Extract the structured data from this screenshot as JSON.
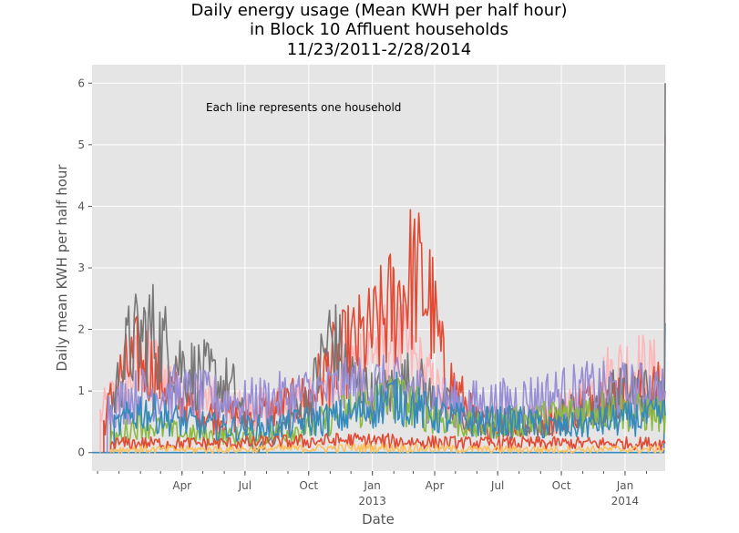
{
  "chart_data": {
    "type": "line",
    "title": [
      "Daily energy usage (Mean KWH per half hour)",
      "in Block 10 Affluent households",
      "11/23/2011-2/28/2014"
    ],
    "xlabel": "Date",
    "ylabel": "Daily mean KWH per half hour",
    "annotation": "Each line represents one household",
    "x_range": [
      "2011-11-23",
      "2014-02-28"
    ],
    "ylim": [
      -0.3,
      6.3
    ],
    "y_ticks": [
      0,
      1,
      2,
      3,
      4,
      5,
      6
    ],
    "x_ticks": [
      {
        "date": "2012-04-01",
        "label": "Apr",
        "sub": ""
      },
      {
        "date": "2012-07-01",
        "label": "Jul",
        "sub": ""
      },
      {
        "date": "2012-10-01",
        "label": "Oct",
        "sub": ""
      },
      {
        "date": "2013-01-01",
        "label": "Jan",
        "sub": "2013"
      },
      {
        "date": "2013-04-01",
        "label": "Apr",
        "sub": ""
      },
      {
        "date": "2013-07-01",
        "label": "Jul",
        "sub": ""
      },
      {
        "date": "2013-10-01",
        "label": "Oct",
        "sub": ""
      },
      {
        "date": "2014-01-01",
        "label": "Jan",
        "sub": "2014"
      }
    ],
    "grid": true,
    "style": "ggplot",
    "colors": {
      "background": "#e5e5e5",
      "grid": "#ffffff",
      "red": "#E24A33",
      "blue": "#348ABD",
      "purple": "#988ED5",
      "gray": "#777777",
      "yellow": "#FBC15E",
      "green": "#8EBA42",
      "pink": "#FFB5B8"
    },
    "series": [
      {
        "color": "#348ABD",
        "kind": "flat",
        "points": [
          [
            "2011-11-23",
            0.0
          ],
          [
            "2014-02-26",
            0.0
          ],
          [
            "2014-02-28",
            2.1
          ]
        ]
      },
      {
        "color": "#FFB5B8",
        "kind": "noisy",
        "points": [
          [
            "2011-12-05",
            0.6
          ],
          [
            "2011-12-20",
            0.85
          ],
          [
            "2012-01-10",
            1.1
          ],
          [
            "2012-02-01",
            1.5
          ],
          [
            "2012-03-01",
            1.3
          ],
          [
            "2012-04-01",
            1.0
          ],
          [
            "2012-05-01",
            0.9
          ],
          [
            "2012-06-15",
            0.7
          ],
          [
            "2012-08-01",
            0.7
          ],
          [
            "2012-09-15",
            0.8
          ],
          [
            "2012-11-01",
            1.0
          ],
          [
            "2012-12-01",
            1.4
          ],
          [
            "2013-01-01",
            1.7
          ],
          [
            "2013-02-01",
            1.8
          ],
          [
            "2013-03-01",
            1.5
          ],
          [
            "2013-04-01",
            1.0
          ],
          [
            "2013-05-15",
            0.6
          ],
          [
            "2013-07-01",
            0.5
          ],
          [
            "2013-09-01",
            0.5
          ],
          [
            "2013-10-15",
            0.7
          ],
          [
            "2013-11-15",
            1.0
          ],
          [
            "2013-12-15",
            1.3
          ],
          [
            "2014-01-15",
            1.4
          ],
          [
            "2014-02-27",
            1.2
          ],
          [
            "2014-02-28",
            5.15
          ]
        ]
      },
      {
        "color": "#E24A33",
        "kind": "noisy",
        "points": [
          [
            "2011-12-10",
            0.5
          ],
          [
            "2012-01-01",
            1.2
          ],
          [
            "2012-02-01",
            1.6
          ],
          [
            "2012-03-01",
            1.2
          ],
          [
            "2012-04-01",
            0.8
          ],
          [
            "2012-05-15",
            0.6
          ],
          [
            "2012-07-01",
            0.6
          ],
          [
            "2012-08-15",
            0.7
          ],
          [
            "2012-10-01",
            0.9
          ],
          [
            "2012-11-01",
            1.4
          ],
          [
            "2012-12-01",
            1.7
          ],
          [
            "2013-01-01",
            1.9
          ],
          [
            "2013-02-01",
            2.4
          ],
          [
            "2013-03-01",
            2.9
          ],
          [
            "2013-03-25",
            2.5
          ],
          [
            "2013-04-15",
            1.3
          ],
          [
            "2013-06-01",
            0.5
          ],
          [
            "2013-08-01",
            0.4
          ],
          [
            "2013-10-01",
            0.6
          ],
          [
            "2013-11-15",
            0.9
          ],
          [
            "2014-01-01",
            1.0
          ],
          [
            "2014-02-28",
            1.0
          ]
        ]
      },
      {
        "color": "#777777",
        "kind": "noisy",
        "points": [
          [
            "2011-12-20",
            0.7
          ],
          [
            "2012-01-15",
            1.7
          ],
          [
            "2012-02-15",
            2.0
          ],
          [
            "2012-03-15",
            1.6
          ],
          [
            "2012-04-15",
            1.3
          ],
          [
            "2012-05-15",
            1.2
          ],
          [
            "2012-06-15",
            1.0
          ],
          [
            "2012-07-15",
            0.0
          ],
          [
            "2012-10-01",
            0.8
          ],
          [
            "2012-11-01",
            1.9
          ],
          [
            "2012-12-01",
            1.2
          ],
          [
            "2013-01-01",
            0.9
          ],
          [
            "2013-02-01",
            1.0
          ],
          [
            "2013-03-01",
            1.2
          ],
          [
            "2013-04-01",
            0.8
          ],
          [
            "2013-06-01",
            0.5
          ],
          [
            "2013-09-01",
            0.5
          ],
          [
            "2013-11-01",
            0.7
          ],
          [
            "2014-01-01",
            1.0
          ],
          [
            "2014-02-27",
            0.9
          ],
          [
            "2014-02-28",
            6.0
          ]
        ]
      },
      {
        "color": "#988ED5",
        "kind": "noisy",
        "points": [
          [
            "2011-12-15",
            0.7
          ],
          [
            "2012-01-15",
            0.9
          ],
          [
            "2012-03-01",
            1.0
          ],
          [
            "2012-05-01",
            0.9
          ],
          [
            "2012-07-01",
            0.8
          ],
          [
            "2012-09-01",
            0.9
          ],
          [
            "2012-11-01",
            1.0
          ],
          [
            "2013-01-01",
            1.1
          ],
          [
            "2013-03-01",
            1.0
          ],
          [
            "2013-05-01",
            0.8
          ],
          [
            "2013-07-01",
            0.8
          ],
          [
            "2013-09-01",
            0.9
          ],
          [
            "2013-11-01",
            1.0
          ],
          [
            "2014-01-01",
            1.0
          ],
          [
            "2014-02-28",
            1.0
          ]
        ]
      },
      {
        "color": "#8EBA42",
        "kind": "noisy",
        "points": [
          [
            "2011-12-20",
            0.2
          ],
          [
            "2012-02-01",
            0.5
          ],
          [
            "2012-04-01",
            0.3
          ],
          [
            "2012-06-01",
            0.25
          ],
          [
            "2012-08-01",
            0.3
          ],
          [
            "2012-10-01",
            0.4
          ],
          [
            "2012-12-01",
            0.7
          ],
          [
            "2013-02-01",
            0.9
          ],
          [
            "2013-04-01",
            0.6
          ],
          [
            "2013-06-01",
            0.4
          ],
          [
            "2013-08-01",
            0.5
          ],
          [
            "2013-10-01",
            0.6
          ],
          [
            "2013-12-01",
            0.7
          ],
          [
            "2014-02-28",
            0.6
          ]
        ]
      },
      {
        "color": "#348ABD",
        "kind": "noisy",
        "points": [
          [
            "2011-12-25",
            0.4
          ],
          [
            "2012-02-01",
            0.7
          ],
          [
            "2012-04-01",
            0.5
          ],
          [
            "2012-06-01",
            0.4
          ],
          [
            "2012-08-01",
            0.4
          ],
          [
            "2012-10-01",
            0.5
          ],
          [
            "2012-12-01",
            0.6
          ],
          [
            "2013-02-01",
            0.9
          ],
          [
            "2013-04-01",
            0.6
          ],
          [
            "2013-06-01",
            0.5
          ],
          [
            "2013-08-01",
            0.5
          ],
          [
            "2013-10-01",
            0.4
          ],
          [
            "2013-12-01",
            0.5
          ],
          [
            "2014-02-28",
            0.6
          ]
        ]
      },
      {
        "color": "#E24A33",
        "kind": "noisy",
        "points": [
          [
            "2011-12-20",
            0.15
          ],
          [
            "2012-06-01",
            0.15
          ],
          [
            "2012-12-01",
            0.2
          ],
          [
            "2013-06-01",
            0.15
          ],
          [
            "2014-02-28",
            0.15
          ]
        ]
      },
      {
        "color": "#FBC15E",
        "kind": "noisy",
        "points": [
          [
            "2011-12-20",
            0.05
          ],
          [
            "2012-06-01",
            0.05
          ],
          [
            "2013-01-01",
            0.08
          ],
          [
            "2013-06-01",
            0.05
          ],
          [
            "2014-02-28",
            0.05
          ]
        ]
      }
    ]
  }
}
